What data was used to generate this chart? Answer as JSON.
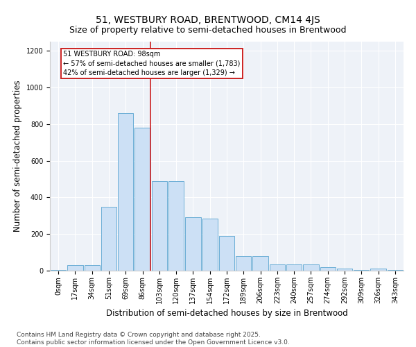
{
  "title": "51, WESTBURY ROAD, BRENTWOOD, CM14 4JS",
  "subtitle": "Size of property relative to semi-detached houses in Brentwood",
  "xlabel": "Distribution of semi-detached houses by size in Brentwood",
  "ylabel": "Number of semi-detached properties",
  "categories": [
    "0sqm",
    "17sqm",
    "34sqm",
    "51sqm",
    "69sqm",
    "86sqm",
    "103sqm",
    "120sqm",
    "137sqm",
    "154sqm",
    "172sqm",
    "189sqm",
    "206sqm",
    "223sqm",
    "240sqm",
    "257sqm",
    "274sqm",
    "292sqm",
    "309sqm",
    "326sqm",
    "343sqm"
  ],
  "values": [
    5,
    30,
    30,
    350,
    860,
    780,
    490,
    490,
    290,
    285,
    190,
    80,
    80,
    35,
    35,
    35,
    20,
    10,
    5,
    10,
    5
  ],
  "bar_color": "#cce0f5",
  "bar_edge_color": "#6baed6",
  "annotation_box_color": "#cc2222",
  "vline_color": "#cc2222",
  "vline_x_idx": 5,
  "annotation_title": "51 WESTBURY ROAD: 98sqm",
  "annotation_line2": "← 57% of semi-detached houses are smaller (1,783)",
  "annotation_line3": "42% of semi-detached houses are larger (1,329) →",
  "ylim": [
    0,
    1250
  ],
  "yticks": [
    0,
    200,
    400,
    600,
    800,
    1000,
    1200
  ],
  "footer_line1": "Contains HM Land Registry data © Crown copyright and database right 2025.",
  "footer_line2": "Contains public sector information licensed under the Open Government Licence v3.0.",
  "title_fontsize": 10,
  "subtitle_fontsize": 9,
  "axis_label_fontsize": 8.5,
  "tick_fontsize": 7,
  "footer_fontsize": 6.5,
  "bg_color": "#eef2f8"
}
